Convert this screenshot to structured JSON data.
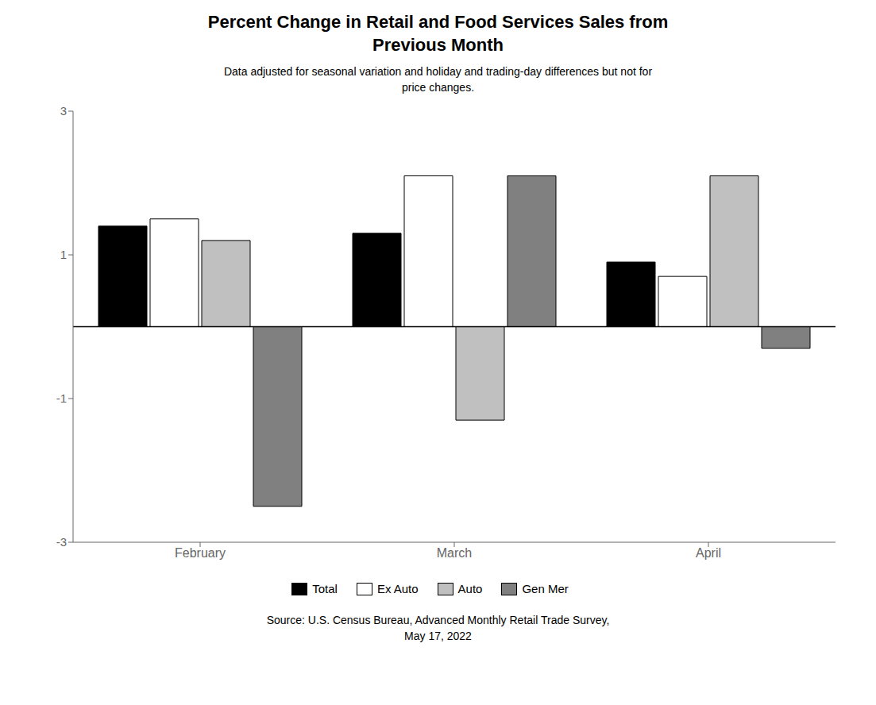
{
  "chart_data": {
    "type": "bar",
    "title": "Percent Change in Retail and Food Services Sales from\nPrevious Month",
    "subtitle": "Data adjusted for seasonal variation and holiday and trading-day differences but not for\nprice changes.",
    "categories": [
      "February",
      "March",
      "April"
    ],
    "series": [
      {
        "name": "Total",
        "color": "#000000",
        "values": [
          1.4,
          1.3,
          0.9
        ]
      },
      {
        "name": "Ex Auto",
        "color": "#ffffff",
        "values": [
          1.5,
          2.1,
          0.7
        ]
      },
      {
        "name": "Auto",
        "color": "#c0c0c0",
        "values": [
          1.2,
          -1.3,
          2.1
        ]
      },
      {
        "name": "Gen Mer",
        "color": "#808080",
        "values": [
          -2.5,
          2.1,
          -0.3
        ]
      }
    ],
    "ylim": [
      -3,
      3
    ],
    "yticks": [
      -3,
      -1,
      1,
      3
    ],
    "grid": false,
    "legend": "bottom",
    "annotations": [
      "Source: U.S. Census Bureau, Advanced Monthly Retail Trade Survey,\nMay 17, 2022"
    ]
  }
}
